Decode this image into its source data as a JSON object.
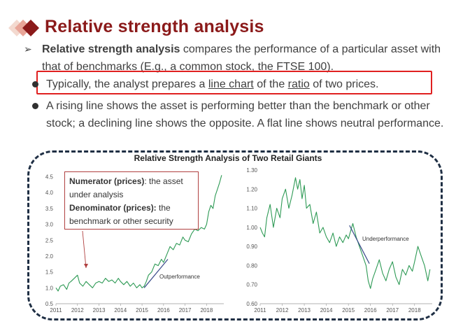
{
  "title": "Relative strength analysis",
  "intro": {
    "bold": "Relative strength analysis",
    "rest": " compares the performance of a particular asset with that of benchmarks (E.g., a common stock, the FTSE 100)."
  },
  "bullet1": {
    "pre": "Typically, the analyst prepares a ",
    "link1": "line chart",
    "mid": " of the ",
    "link2": "ratio",
    "post": " of two prices."
  },
  "bullet2": "A rising line shows the asset is performing better than the benchmark or other stock; a declining line shows the opposite. A flat line shows neutral performance.",
  "colors": {
    "title": "#8b1a1a",
    "highlight": "#e02020",
    "line": "#2e9a55",
    "trend": "#3a4a8a",
    "frame": "#1f2f44"
  },
  "callout": {
    "numerator_label": "Numerator (prices)",
    "numerator_text": ": the asset under analysis",
    "denominator_label": "Denominator (prices):",
    "denominator_text": " the benchmark or other security"
  },
  "chart_data": [
    {
      "type": "line",
      "title": "Relative Strength Analysis of Two Retail Giants",
      "annotation": "Outperformance",
      "xlim": [
        2011,
        2018.8
      ],
      "ylim": [
        0.5,
        4.6
      ],
      "yticks": [
        "0.5",
        "1.0",
        "1.5",
        "2.0",
        "2.5",
        "3.0",
        "3.5",
        "4.0",
        "4.5"
      ],
      "xticks": [
        "2011",
        "2012",
        "2013",
        "2014",
        "2015",
        "2016",
        "2017",
        "2018"
      ],
      "series": [
        {
          "x": [
            2011,
            2011.1,
            2011.2,
            2011.35,
            2011.5,
            2011.6,
            2011.7,
            2011.85,
            2012,
            2012.1,
            2012.25,
            2012.4,
            2012.55,
            2012.7,
            2012.85,
            2013,
            2013.15,
            2013.3,
            2013.45,
            2013.6,
            2013.75,
            2013.9,
            2014,
            2014.15,
            2014.3,
            2014.45,
            2014.6,
            2014.75,
            2014.9,
            2015,
            2015.1,
            2015.2,
            2015.3,
            2015.45,
            2015.6,
            2015.75,
            2015.9,
            2016,
            2016.15,
            2016.3,
            2016.45,
            2016.6,
            2016.75,
            2016.9,
            2017,
            2017.15,
            2017.3,
            2017.45,
            2017.6,
            2017.75,
            2017.9,
            2018,
            2018.1,
            2018.2,
            2018.3,
            2018.4,
            2018.5,
            2018.6,
            2018.7
          ],
          "y": [
            1.0,
            0.9,
            1.05,
            1.1,
            0.95,
            1.15,
            1.2,
            1.3,
            1.4,
            1.15,
            1.05,
            1.2,
            1.1,
            1.0,
            1.15,
            1.2,
            1.15,
            1.3,
            1.2,
            1.25,
            1.15,
            1.3,
            1.2,
            1.1,
            1.2,
            1.05,
            1.15,
            1.0,
            1.1,
            1.0,
            1.05,
            1.2,
            1.4,
            1.5,
            1.75,
            1.7,
            1.9,
            1.8,
            2.05,
            2.3,
            2.2,
            2.4,
            2.35,
            2.6,
            2.5,
            2.45,
            2.7,
            2.85,
            2.8,
            2.9,
            2.85,
            3.0,
            3.4,
            3.6,
            3.5,
            3.9,
            4.1,
            4.3,
            4.55
          ]
        }
      ],
      "trend": {
        "x": [
          2015.1,
          2016.2
        ],
        "y": [
          1.0,
          1.9
        ]
      }
    },
    {
      "type": "line",
      "annotation": "Underperformance",
      "xlim": [
        2011,
        2018.8
      ],
      "ylim": [
        0.6,
        1.3
      ],
      "yticks": [
        "0.60",
        "0.70",
        "0.80",
        "0.90",
        "1.00",
        "1.10",
        "1.20",
        "1.30"
      ],
      "xticks": [
        "2011",
        "2012",
        "2013",
        "2014",
        "2015",
        "2016",
        "2017",
        "2018"
      ],
      "series": [
        {
          "x": [
            2011,
            2011.1,
            2011.2,
            2011.3,
            2011.45,
            2011.6,
            2011.75,
            2011.9,
            2012,
            2012.15,
            2012.3,
            2012.45,
            2012.6,
            2012.7,
            2012.8,
            2012.9,
            2013,
            2013.1,
            2013.25,
            2013.4,
            2013.55,
            2013.7,
            2013.85,
            2014,
            2014.15,
            2014.3,
            2014.45,
            2014.6,
            2014.75,
            2014.9,
            2015,
            2015.1,
            2015.2,
            2015.35,
            2015.5,
            2015.65,
            2015.8,
            2015.9,
            2016,
            2016.1,
            2016.25,
            2016.4,
            2016.55,
            2016.7,
            2016.85,
            2017,
            2017.15,
            2017.3,
            2017.45,
            2017.6,
            2017.75,
            2017.9,
            2018,
            2018.15,
            2018.3,
            2018.45,
            2018.6,
            2018.7
          ],
          "y": [
            1.0,
            0.97,
            0.95,
            1.05,
            1.12,
            1.0,
            1.1,
            1.05,
            1.15,
            1.2,
            1.1,
            1.17,
            1.26,
            1.2,
            1.25,
            1.15,
            1.22,
            1.1,
            1.12,
            1.02,
            1.08,
            0.97,
            1.0,
            0.95,
            0.92,
            0.97,
            0.9,
            0.95,
            0.92,
            0.96,
            0.94,
            0.98,
            1.02,
            0.95,
            0.9,
            0.85,
            0.8,
            0.72,
            0.68,
            0.73,
            0.78,
            0.83,
            0.76,
            0.72,
            0.78,
            0.82,
            0.74,
            0.7,
            0.78,
            0.75,
            0.8,
            0.77,
            0.82,
            0.9,
            0.85,
            0.8,
            0.72,
            0.78
          ]
        }
      ],
      "trend": {
        "x": [
          2015.05,
          2015.95
        ],
        "y": [
          1.01,
          0.81
        ]
      }
    }
  ]
}
